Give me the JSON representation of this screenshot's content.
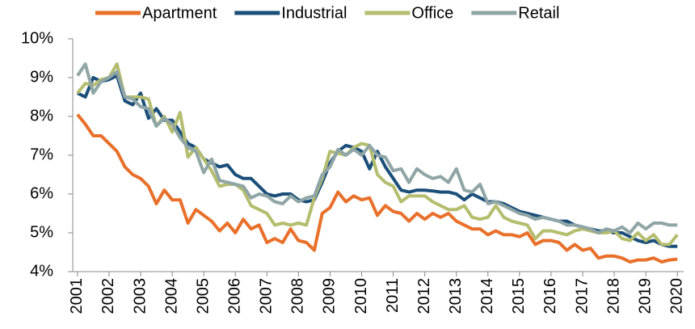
{
  "chart_data": {
    "type": "line",
    "x": [
      2001,
      2001.25,
      2001.5,
      2001.75,
      2002,
      2002.25,
      2002.5,
      2002.75,
      2003,
      2003.25,
      2003.5,
      2003.75,
      2004,
      2004.25,
      2004.5,
      2004.75,
      2005,
      2005.25,
      2005.5,
      2005.75,
      2006,
      2006.25,
      2006.5,
      2006.75,
      2007,
      2007.25,
      2007.5,
      2007.75,
      2008,
      2008.25,
      2008.5,
      2008.75,
      2009,
      2009.25,
      2009.5,
      2009.75,
      2010,
      2010.25,
      2010.5,
      2010.75,
      2011,
      2011.25,
      2011.5,
      2011.75,
      2012,
      2012.25,
      2012.5,
      2012.75,
      2013,
      2013.25,
      2013.5,
      2013.75,
      2014,
      2014.25,
      2014.5,
      2014.75,
      2015,
      2015.25,
      2015.5,
      2015.75,
      2016,
      2016.25,
      2016.5,
      2016.75,
      2017,
      2017.25,
      2017.5,
      2017.75,
      2018,
      2018.25,
      2018.5,
      2018.75,
      2019,
      2019.25,
      2019.5,
      2019.75,
      2020
    ],
    "series": [
      {
        "name": "Apartment",
        "color": "#e8702a",
        "values": [
          8.05,
          7.8,
          7.5,
          7.5,
          7.3,
          7.1,
          6.7,
          6.5,
          6.4,
          6.2,
          5.75,
          6.1,
          5.85,
          5.85,
          5.25,
          5.6,
          5.45,
          5.3,
          5.05,
          5.25,
          5.0,
          5.35,
          5.1,
          5.2,
          4.75,
          4.85,
          4.75,
          5.1,
          4.8,
          4.75,
          4.55,
          5.5,
          5.65,
          6.05,
          5.8,
          5.95,
          5.85,
          5.9,
          5.45,
          5.7,
          5.55,
          5.5,
          5.3,
          5.5,
          5.35,
          5.5,
          5.4,
          5.5,
          5.3,
          5.2,
          5.1,
          5.1,
          4.95,
          5.05,
          4.95,
          4.95,
          4.9,
          5.0,
          4.7,
          4.8,
          4.8,
          4.75,
          4.55,
          4.7,
          4.55,
          4.6,
          4.35,
          4.4,
          4.4,
          4.35,
          4.25,
          4.3,
          4.3,
          4.35,
          4.25,
          4.3,
          4.32
        ]
      },
      {
        "name": "Industrial",
        "color": "#1b4f7a",
        "values": [
          8.6,
          8.5,
          9.0,
          8.9,
          8.95,
          9.05,
          8.4,
          8.3,
          8.6,
          7.95,
          8.2,
          7.9,
          7.9,
          7.6,
          7.3,
          7.2,
          6.9,
          6.8,
          6.7,
          6.75,
          6.5,
          6.4,
          6.4,
          6.2,
          6.0,
          5.95,
          6.0,
          6.0,
          5.85,
          5.8,
          5.85,
          6.3,
          6.8,
          7.1,
          7.25,
          7.2,
          7.1,
          6.65,
          7.1,
          6.7,
          6.4,
          6.1,
          6.05,
          6.1,
          6.1,
          6.08,
          6.05,
          6.05,
          6.0,
          5.85,
          6.0,
          5.9,
          5.8,
          5.8,
          5.75,
          5.65,
          5.55,
          5.5,
          5.45,
          5.4,
          5.35,
          5.3,
          5.3,
          5.2,
          5.15,
          5.1,
          5.05,
          5.05,
          5.0,
          5.0,
          4.9,
          4.8,
          4.75,
          4.8,
          4.7,
          4.65,
          4.65
        ]
      },
      {
        "name": "Office",
        "color": "#b5bd6e",
        "values": [
          8.6,
          8.85,
          8.8,
          8.95,
          9.0,
          9.35,
          8.5,
          8.5,
          8.5,
          8.45,
          7.75,
          8.0,
          7.6,
          8.1,
          6.95,
          7.2,
          6.9,
          6.6,
          6.2,
          6.25,
          6.25,
          6.1,
          5.7,
          5.6,
          5.5,
          5.2,
          5.25,
          5.2,
          5.25,
          5.2,
          5.9,
          6.4,
          7.1,
          7.05,
          7.0,
          7.2,
          7.3,
          7.25,
          6.5,
          6.3,
          6.2,
          5.8,
          5.95,
          5.95,
          5.95,
          5.8,
          5.7,
          5.6,
          5.6,
          5.7,
          5.4,
          5.35,
          5.4,
          5.7,
          5.4,
          5.3,
          5.25,
          5.2,
          4.85,
          5.05,
          5.05,
          5.0,
          4.95,
          5.05,
          5.1,
          5.05,
          5.0,
          5.0,
          5.05,
          4.85,
          4.8,
          5.0,
          4.8,
          4.95,
          4.7,
          4.7,
          4.95
        ]
      },
      {
        "name": "Retail",
        "color": "#8fa5a6",
        "values": [
          9.05,
          9.35,
          8.6,
          8.9,
          9.0,
          9.15,
          8.5,
          8.45,
          8.25,
          8.2,
          7.75,
          7.95,
          7.8,
          7.45,
          7.2,
          7.1,
          6.55,
          6.9,
          6.35,
          6.3,
          6.25,
          6.2,
          5.9,
          6.0,
          5.95,
          5.8,
          5.75,
          5.95,
          5.8,
          5.9,
          5.95,
          6.5,
          6.7,
          7.15,
          7.0,
          7.15,
          7.0,
          7.25,
          7.0,
          6.95,
          6.6,
          6.65,
          6.3,
          6.65,
          6.5,
          6.4,
          6.45,
          6.3,
          6.65,
          6.1,
          6.05,
          6.25,
          5.75,
          5.8,
          5.7,
          5.6,
          5.5,
          5.45,
          5.35,
          5.4,
          5.35,
          5.3,
          5.2,
          5.2,
          5.15,
          5.1,
          5.0,
          5.1,
          5.05,
          5.15,
          5.0,
          5.25,
          5.1,
          5.25,
          5.25,
          5.2,
          5.2
        ]
      }
    ],
    "xlim": [
      2000.85,
      2020.2
    ],
    "xticks": [
      2001,
      2002,
      2003,
      2004,
      2005,
      2006,
      2007,
      2008,
      2009,
      2010,
      2011,
      2012,
      2013,
      2014,
      2015,
      2016,
      2017,
      2018,
      2019,
      2020
    ],
    "ylim": [
      4,
      10
    ],
    "yticks": [
      {
        "value": 4,
        "label": "4%"
      },
      {
        "value": 5,
        "label": "5%"
      },
      {
        "value": 6,
        "label": "6%"
      },
      {
        "value": 7,
        "label": "7%"
      },
      {
        "value": 8,
        "label": "8%"
      },
      {
        "value": 9,
        "label": "9%"
      },
      {
        "value": 10,
        "label": "10%"
      }
    ],
    "legend": "top"
  }
}
